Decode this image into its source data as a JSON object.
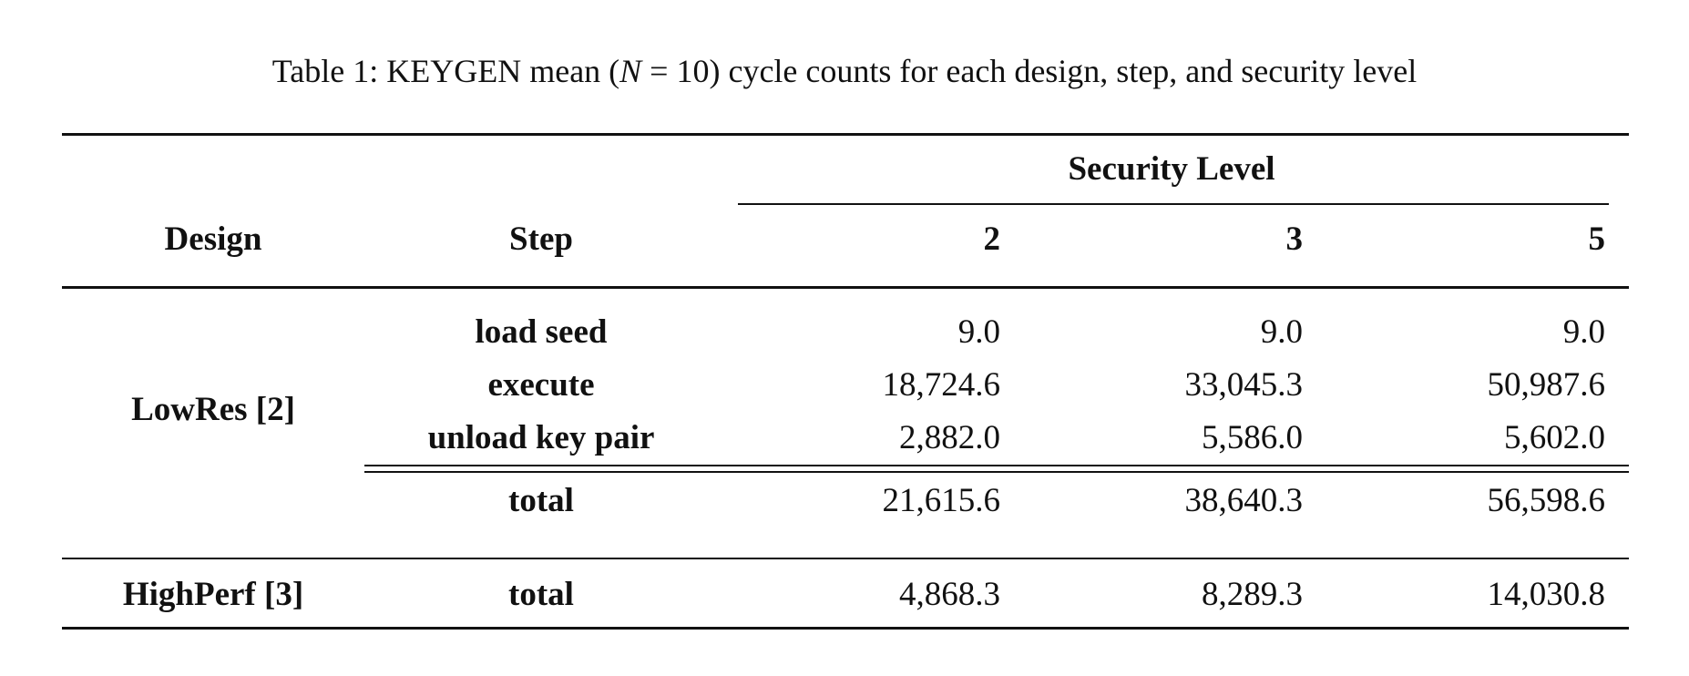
{
  "caption": {
    "prefix": "Table 1: KEYGEN mean (",
    "n_var": "N",
    "n_eq": " = 10",
    "suffix": ") cycle counts for each design, step, and security level"
  },
  "headers": {
    "design": "Design",
    "step": "Step",
    "group": "Security Level",
    "levels": [
      "2",
      "3",
      "5"
    ]
  },
  "groups": [
    {
      "design": "LowRes [2]",
      "rows": [
        {
          "step": "load seed",
          "values": [
            "9.0",
            "9.0",
            "9.0"
          ]
        },
        {
          "step": "execute",
          "values": [
            "18,724.6",
            "33,045.3",
            "50,987.6"
          ]
        },
        {
          "step": "unload key pair",
          "values": [
            "2,882.0",
            "5,586.0",
            "5,602.0"
          ]
        },
        {
          "step": "total",
          "values": [
            "21,615.6",
            "38,640.3",
            "56,598.6"
          ]
        }
      ]
    },
    {
      "design": "HighPerf [3]",
      "rows": [
        {
          "step": "total",
          "values": [
            "4,868.3",
            "8,289.3",
            "14,030.8"
          ]
        }
      ]
    }
  ]
}
